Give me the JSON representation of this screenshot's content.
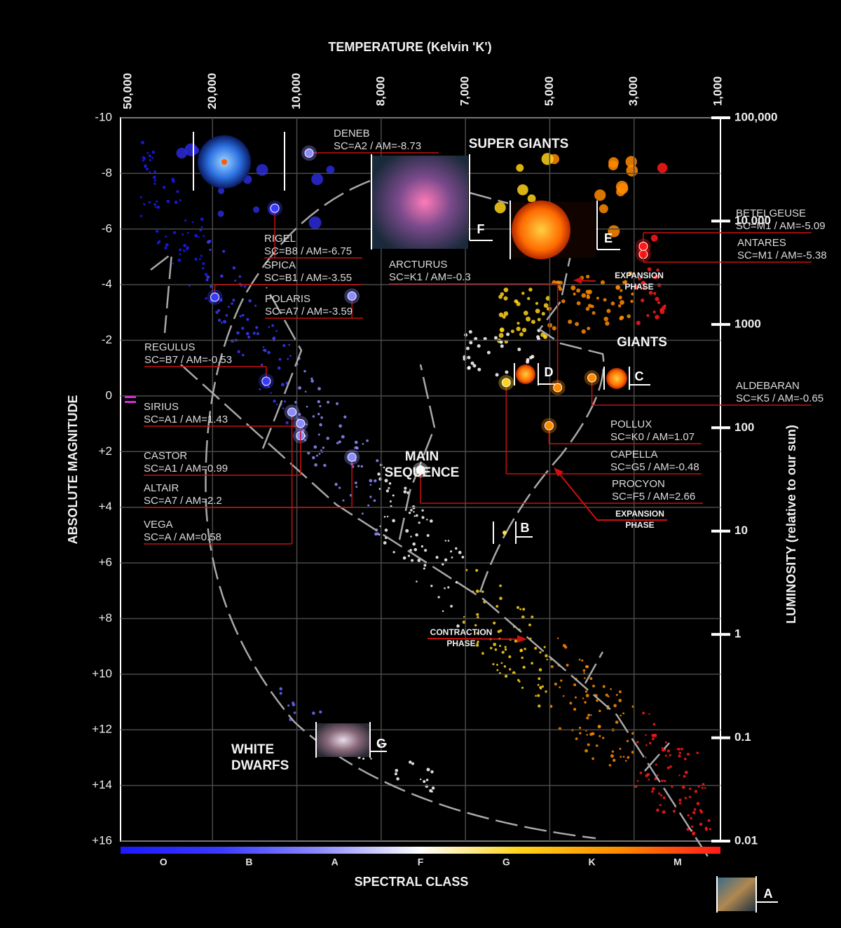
{
  "chart_data": {
    "type": "scatter",
    "title": "TEMPERATURE (Kelvin 'K')",
    "temperature_ticks": [
      "50,000",
      "20,000",
      "10,000",
      "8,000",
      "7,000",
      "5,000",
      "3,000",
      "1,000"
    ],
    "ylabel": "ABSOLUTE MAGNITUDE",
    "ylim": [
      -10,
      16
    ],
    "y_reversed": true,
    "yticks": [
      -10,
      -8,
      -6,
      -4,
      -2,
      0,
      {
        "value": 2,
        "label": "+2"
      },
      {
        "value": 4,
        "label": "+4"
      },
      {
        "value": 6,
        "label": "+6"
      },
      {
        "value": 8,
        "label": "+8"
      },
      {
        "value": 10,
        "label": "+10"
      },
      {
        "value": 12,
        "label": "+12"
      },
      {
        "value": 14,
        "label": "+14"
      },
      {
        "value": 16,
        "label": "+16"
      }
    ],
    "y2label": "LUMINOSITY (relative to our sun)",
    "y2lim": [
      0.01,
      100000
    ],
    "y2_log": true,
    "y2ticks": [
      {
        "value": 100000,
        "label": "100,000"
      },
      {
        "value": 10000,
        "label": "10,000"
      },
      1000,
      100,
      10,
      1,
      0.1,
      0.01
    ],
    "xlabel": "SPECTRAL CLASS",
    "categories": [
      "O",
      "B",
      "A",
      "F",
      "G",
      "K",
      "M"
    ],
    "category_colors": [
      "#1a1aff",
      "#3a3aff",
      "#8c8cff",
      "#ffffff",
      "#ffd21a",
      "#ff8a00",
      "#ff1a1a"
    ],
    "grid": true,
    "stars": [
      {
        "name": "DENEB",
        "spectral_class": "A2",
        "magnitude": -8.73,
        "label": "SC=A2 / AM=-8.73"
      },
      {
        "name": "RIGEL",
        "spectral_class": "B8",
        "magnitude": -6.75,
        "label": "SC=B8 / AM=-6.75"
      },
      {
        "name": "SPICA",
        "spectral_class": "B1",
        "magnitude": -3.55,
        "label": "SC=B1 / AM=-3.55"
      },
      {
        "name": "ARCTURUS",
        "spectral_class": "K1",
        "magnitude": -0.3,
        "label": "SC=K1 / AM=-0.3"
      },
      {
        "name": "POLARIS",
        "spectral_class": "A7",
        "magnitude": -3.59,
        "label": "SC=A7 / AM=-3.59"
      },
      {
        "name": "REGULUS",
        "spectral_class": "B7",
        "magnitude": -0.53,
        "label": "SC=B7 / AM=-0.53"
      },
      {
        "name": "SIRIUS",
        "spectral_class": "A1",
        "magnitude": 1.43,
        "label": "SC=A1 / AM=1.43"
      },
      {
        "name": "CASTOR",
        "spectral_class": "A1",
        "magnitude": 0.99,
        "label": "SC=A1 / AM=0.99"
      },
      {
        "name": "ALTAIR",
        "spectral_class": "A7",
        "magnitude": 2.2,
        "label": "SC=A7 / AM=2.2"
      },
      {
        "name": "VEGA",
        "spectral_class": "A",
        "magnitude": 0.58,
        "label": "SC=A / AM=0.58"
      },
      {
        "name": "BETELGEUSE",
        "spectral_class": "M1",
        "magnitude": -5.09,
        "label": "SC=M1 / AM=-5.09"
      },
      {
        "name": "ANTARES",
        "spectral_class": "M1",
        "magnitude": -5.38,
        "label": "SC=M1 / AM=-5.38"
      },
      {
        "name": "ALDEBARAN",
        "spectral_class": "K5",
        "magnitude": -0.65,
        "label": "SC=K5 / AM=-0.65"
      },
      {
        "name": "POLLUX",
        "spectral_class": "K0",
        "magnitude": 1.07,
        "label": "SC=K0 / AM=1.07"
      },
      {
        "name": "CAPELLA",
        "spectral_class": "G5",
        "magnitude": -0.48,
        "label": "SC=G5 / AM=-0.48"
      },
      {
        "name": "PROCYON",
        "spectral_class": "F5",
        "magnitude": 2.66,
        "label": "SC=F5 / AM=2.66"
      }
    ],
    "regions": [
      {
        "lines": [
          "SUPER GIANTS"
        ]
      },
      {
        "lines": [
          "GIANTS"
        ]
      },
      {
        "lines": [
          "MAIN",
          "SEQUENCE"
        ]
      },
      {
        "lines": [
          "WHITE",
          "DWARFS"
        ]
      }
    ],
    "phases": [
      {
        "lines": [
          "EXPANSION",
          "PHASE"
        ]
      },
      {
        "lines": [
          "EXPANSION",
          "PHASE"
        ]
      },
      {
        "lines": [
          "CONTRACTION",
          "PHASE"
        ]
      }
    ],
    "stages": [
      "A",
      "B",
      "C",
      "D",
      "E",
      "F",
      "G"
    ]
  }
}
